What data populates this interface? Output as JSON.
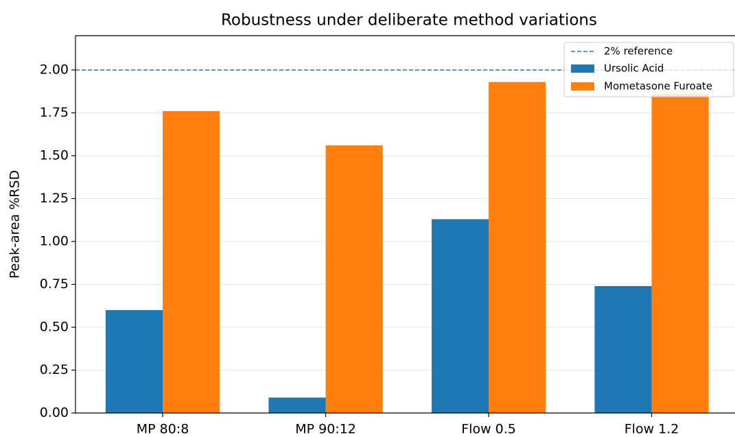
{
  "chart_data": {
    "type": "bar",
    "title": "Robustness under deliberate method variations",
    "y_label": "Peak-area %RSD",
    "categories": [
      "MP 80:8",
      "MP 90:12",
      "Flow 0.5",
      "Flow 1.2"
    ],
    "series": [
      {
        "name": "Ursolic Acid",
        "color": "#1f77b4",
        "values": [
          0.6,
          0.09,
          1.13,
          0.74
        ]
      },
      {
        "name": "Mometasone Furoate",
        "color": "#ff7f0e",
        "values": [
          1.76,
          1.56,
          1.93,
          1.86
        ]
      }
    ],
    "reference": {
      "name": "2% reference",
      "value": 2,
      "color": "#1f77b4"
    },
    "ylim": [
      0,
      2.2
    ],
    "yticks": [
      {
        "value": 0,
        "label": "0.00"
      },
      {
        "value": 0.25,
        "label": "0.25"
      },
      {
        "value": 0.5,
        "label": "0.50"
      },
      {
        "value": 0.75,
        "label": "0.75"
      },
      {
        "value": 1,
        "label": "1.00"
      },
      {
        "value": 1.25,
        "label": "1.25"
      },
      {
        "value": 1.5,
        "label": "1.50"
      },
      {
        "value": 1.75,
        "label": "1.75"
      },
      {
        "value": 2,
        "label": "2.00"
      }
    ],
    "grid": true,
    "legend": "upper right"
  }
}
